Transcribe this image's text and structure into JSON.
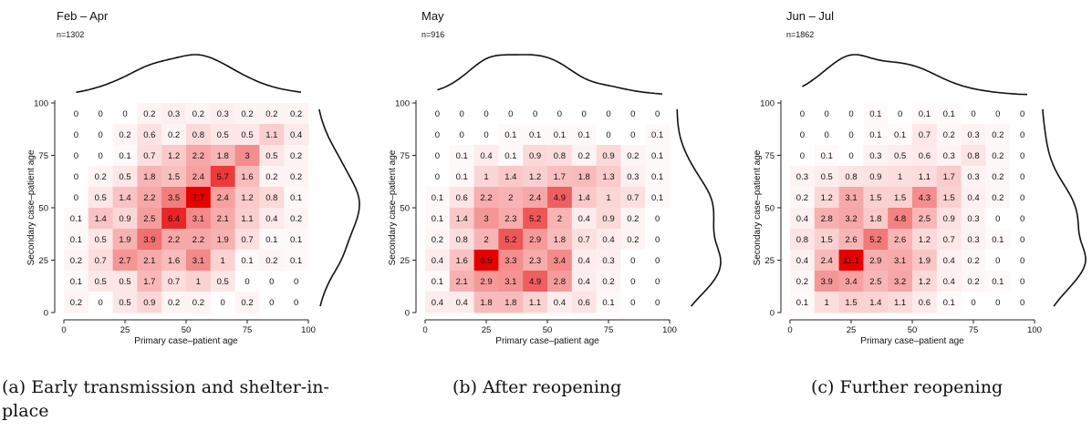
{
  "chart_data": [
    {
      "type": "heatmap",
      "title": "Feb – Apr",
      "subtitle": "n=1302",
      "xlabel": "Primary case–patient age",
      "ylabel": "Secondary case–patient age",
      "xticks": [
        "0",
        "25",
        "50",
        "75",
        "100"
      ],
      "yticks": [
        "0",
        "25",
        "50",
        "75",
        "100"
      ],
      "xlim": [
        0,
        100
      ],
      "ylim": [
        0,
        100
      ],
      "x": [
        5,
        15,
        25,
        35,
        45,
        55,
        65,
        75,
        85,
        95
      ],
      "y": [
        95,
        85,
        75,
        65,
        55,
        45,
        35,
        25,
        15,
        5
      ],
      "values": [
        [
          "0",
          "0",
          "0",
          "0.2",
          "0.3",
          "0.2",
          "0.3",
          "0.2",
          "0.2",
          "0.2"
        ],
        [
          "0",
          "0",
          "0.2",
          "0.6",
          "0.2",
          "0.8",
          "0.5",
          "0.5",
          "1.1",
          "0.4"
        ],
        [
          "0",
          "0",
          "0.1",
          "0.7",
          "1.2",
          "2.2",
          "1.8",
          "3",
          "0.5",
          "0.2"
        ],
        [
          "0",
          "0.2",
          "0.5",
          "1.8",
          "1.5",
          "2.4",
          "5.7",
          "1.6",
          "0.2",
          "0.2"
        ],
        [
          "0",
          "0.5",
          "1.4",
          "2.2",
          "3.5",
          "7.7",
          "2.4",
          "1.2",
          "0.8",
          "0.1"
        ],
        [
          "0.1",
          "1.4",
          "0.9",
          "2.5",
          "6.4",
          "3.1",
          "2.1",
          "1.1",
          "0.4",
          "0.2"
        ],
        [
          "0.1",
          "0.5",
          "1.9",
          "3.9",
          "2.2",
          "2.2",
          "1.9",
          "0.7",
          "0.1",
          "0.1"
        ],
        [
          "0.2",
          "0.7",
          "2.7",
          "2.1",
          "1.6",
          "3.1",
          "1",
          "0.1",
          "0.2",
          "0.1"
        ],
        [
          "0.1",
          "0.5",
          "0.5",
          "1.7",
          "0.7",
          "1",
          "0.5",
          "0",
          "0",
          "0"
        ],
        [
          "0.2",
          "0",
          "0.5",
          "0.9",
          "0.2",
          "0.2",
          "0",
          "0.2",
          "0",
          "0"
        ]
      ],
      "caption": "(a)  Early transmission and shelter-in-place"
    },
    {
      "type": "heatmap",
      "title": "May",
      "subtitle": "n=916",
      "xlabel": "Primary case–patient age",
      "ylabel": "Secondary case–patient age",
      "xticks": [
        "0",
        "25",
        "50",
        "75",
        "100"
      ],
      "yticks": [
        "0",
        "25",
        "50",
        "75",
        "100"
      ],
      "xlim": [
        0,
        100
      ],
      "ylim": [
        0,
        100
      ],
      "x": [
        5,
        15,
        25,
        35,
        45,
        55,
        65,
        75,
        85,
        95
      ],
      "y": [
        95,
        85,
        75,
        65,
        55,
        45,
        35,
        25,
        15,
        5
      ],
      "values": [
        [
          "0",
          "0",
          "0",
          "0",
          "0",
          "0",
          "0",
          "0",
          "0",
          "0"
        ],
        [
          "0",
          "0",
          "0",
          "0.1",
          "0.1",
          "0.1",
          "0.1",
          "0",
          "0",
          "0.1"
        ],
        [
          "0",
          "0.1",
          "0.4",
          "0.1",
          "0.9",
          "0.8",
          "0.2",
          "0.9",
          "0.2",
          "0.1"
        ],
        [
          "0",
          "0.1",
          "1",
          "1.4",
          "1.2",
          "1.7",
          "1.8",
          "1.3",
          "0.3",
          "0.1"
        ],
        [
          "0.1",
          "0.6",
          "2.2",
          "2",
          "2.4",
          "4.9",
          "1.4",
          "1",
          "0.7",
          "0.1"
        ],
        [
          "0.1",
          "1.4",
          "3",
          "2.3",
          "5.2",
          "2",
          "0.4",
          "0.9",
          "0.2",
          "0"
        ],
        [
          "0.2",
          "0.8",
          "2",
          "5.2",
          "2.9",
          "1.8",
          "0.7",
          "0.4",
          "0.2",
          "0"
        ],
        [
          "0.4",
          "1.6",
          "8.5",
          "3.3",
          "2.3",
          "3.4",
          "0.4",
          "0.3",
          "0",
          "0"
        ],
        [
          "0.1",
          "2.1",
          "2.9",
          "3.1",
          "4.9",
          "2.8",
          "0.4",
          "0.2",
          "0",
          "0"
        ],
        [
          "0.4",
          "0.4",
          "1.8",
          "1.8",
          "1.1",
          "0.4",
          "0.6",
          "0.1",
          "0",
          "0"
        ]
      ],
      "caption": "(b)  After reopening"
    },
    {
      "type": "heatmap",
      "title": "Jun – Jul",
      "subtitle": "n=1862",
      "xlabel": "Primary case–patient age",
      "ylabel": "Secondary case–patient age",
      "xticks": [
        "0",
        "25",
        "50",
        "75",
        "100"
      ],
      "yticks": [
        "0",
        "25",
        "50",
        "75",
        "100"
      ],
      "xlim": [
        0,
        100
      ],
      "ylim": [
        0,
        100
      ],
      "x": [
        5,
        15,
        25,
        35,
        45,
        55,
        65,
        75,
        85,
        95
      ],
      "y": [
        95,
        85,
        75,
        65,
        55,
        45,
        35,
        25,
        15,
        5
      ],
      "values": [
        [
          "0",
          "0",
          "0",
          "0.1",
          "0",
          "0.1",
          "0.1",
          "0",
          "0",
          "0"
        ],
        [
          "0",
          "0",
          "0",
          "0.1",
          "0.1",
          "0.7",
          "0.2",
          "0.3",
          "0.2",
          "0"
        ],
        [
          "0",
          "0.1",
          "0",
          "0.3",
          "0.5",
          "0.6",
          "0.3",
          "0.8",
          "0.2",
          "0"
        ],
        [
          "0.3",
          "0.5",
          "0.8",
          "0.9",
          "1",
          "1.1",
          "1.7",
          "0.3",
          "0.2",
          "0"
        ],
        [
          "0.2",
          "1.2",
          "3.1",
          "1.5",
          "1.5",
          "4.3",
          "1.5",
          "0.4",
          "0.2",
          "0"
        ],
        [
          "0.4",
          "2.8",
          "3.2",
          "1.8",
          "4.8",
          "2.5",
          "0.9",
          "0.3",
          "0",
          "0"
        ],
        [
          "0.8",
          "1.5",
          "2.6",
          "5.2",
          "2.6",
          "1.2",
          "0.7",
          "0.3",
          "0.1",
          "0"
        ],
        [
          "0.4",
          "2.4",
          "11.1",
          "2.9",
          "3.1",
          "1.9",
          "0.4",
          "0.2",
          "0",
          "0"
        ],
        [
          "0.2",
          "3.9",
          "3.4",
          "2.5",
          "3.2",
          "1.2",
          "0.4",
          "0.2",
          "0.1",
          "0"
        ],
        [
          "0.1",
          "1",
          "1.5",
          "1.4",
          "1.1",
          "0.6",
          "0.1",
          "0",
          "0",
          "0"
        ]
      ],
      "caption": "(c)  Further reopening"
    }
  ],
  "colors": {
    "scale_low": "#ffffff",
    "scale_high": "#e60000",
    "text": "#111111"
  }
}
